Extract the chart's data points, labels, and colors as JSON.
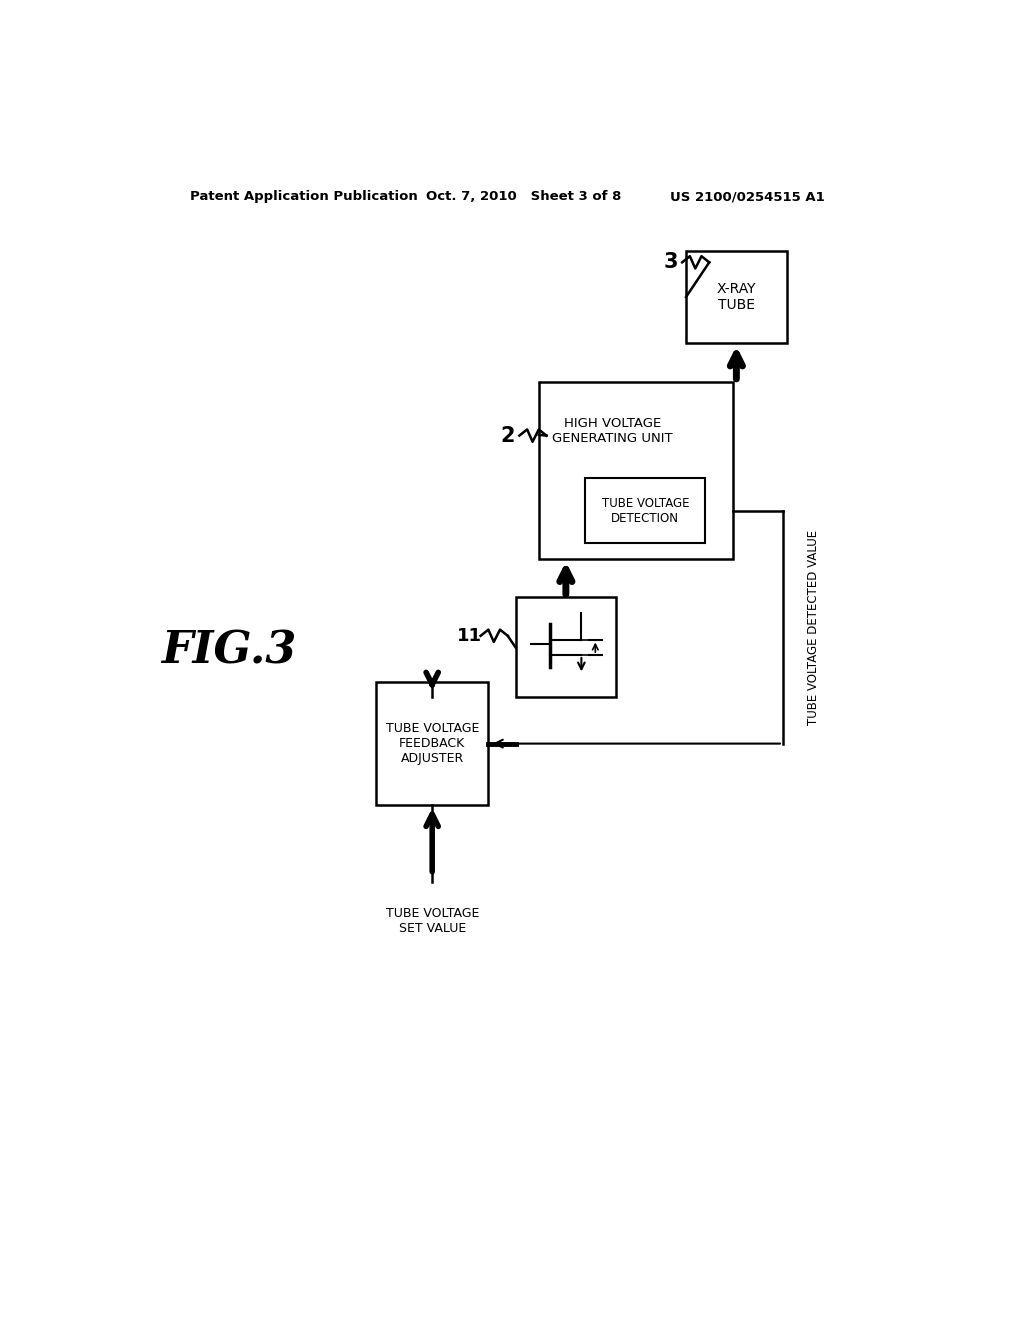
{
  "bg_color": "#ffffff",
  "header_left": "Patent Application Publication",
  "header_mid": "Oct. 7, 2010   Sheet 3 of 8",
  "header_right": "US 2100/0254515 A1",
  "fig_label": "FIG.3",
  "header_right_correct": "US 2100/0254515 A1"
}
